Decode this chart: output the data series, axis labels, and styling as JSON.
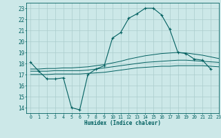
{
  "xlabel": "Humidex (Indice chaleur)",
  "xlim": [
    -0.5,
    23
  ],
  "ylim": [
    13.5,
    23.5
  ],
  "yticks": [
    14,
    15,
    16,
    17,
    18,
    19,
    20,
    21,
    22,
    23
  ],
  "xticks": [
    0,
    1,
    2,
    3,
    4,
    5,
    6,
    7,
    8,
    9,
    10,
    11,
    12,
    13,
    14,
    15,
    16,
    17,
    18,
    19,
    20,
    21,
    22,
    23
  ],
  "bg_color": "#cce8e8",
  "grid_color": "#aacccc",
  "line_color": "#005f5f",
  "main_data": [
    18.1,
    17.3,
    16.6,
    16.6,
    16.7,
    14.0,
    13.8,
    17.0,
    17.5,
    17.8,
    20.3,
    20.8,
    22.1,
    22.5,
    23.0,
    23.0,
    22.4,
    21.1,
    19.0,
    18.9,
    18.4,
    18.3,
    17.5,
    null
  ],
  "smooth1": [
    17.0,
    17.0,
    17.0,
    17.05,
    17.05,
    17.05,
    17.05,
    17.1,
    17.15,
    17.2,
    17.3,
    17.4,
    17.5,
    17.6,
    17.65,
    17.7,
    17.75,
    17.75,
    17.8,
    17.8,
    17.8,
    17.8,
    17.75,
    17.7
  ],
  "smooth2": [
    17.3,
    17.3,
    17.3,
    17.35,
    17.35,
    17.35,
    17.35,
    17.4,
    17.5,
    17.6,
    17.7,
    17.8,
    17.9,
    18.0,
    18.1,
    18.15,
    18.2,
    18.25,
    18.3,
    18.3,
    18.25,
    18.2,
    18.15,
    18.1
  ],
  "smooth3": [
    17.5,
    17.5,
    17.55,
    17.55,
    17.6,
    17.6,
    17.65,
    17.7,
    17.8,
    17.9,
    18.05,
    18.2,
    18.4,
    18.55,
    18.7,
    18.8,
    18.9,
    18.95,
    19.0,
    18.95,
    18.85,
    18.75,
    18.6,
    18.45
  ]
}
